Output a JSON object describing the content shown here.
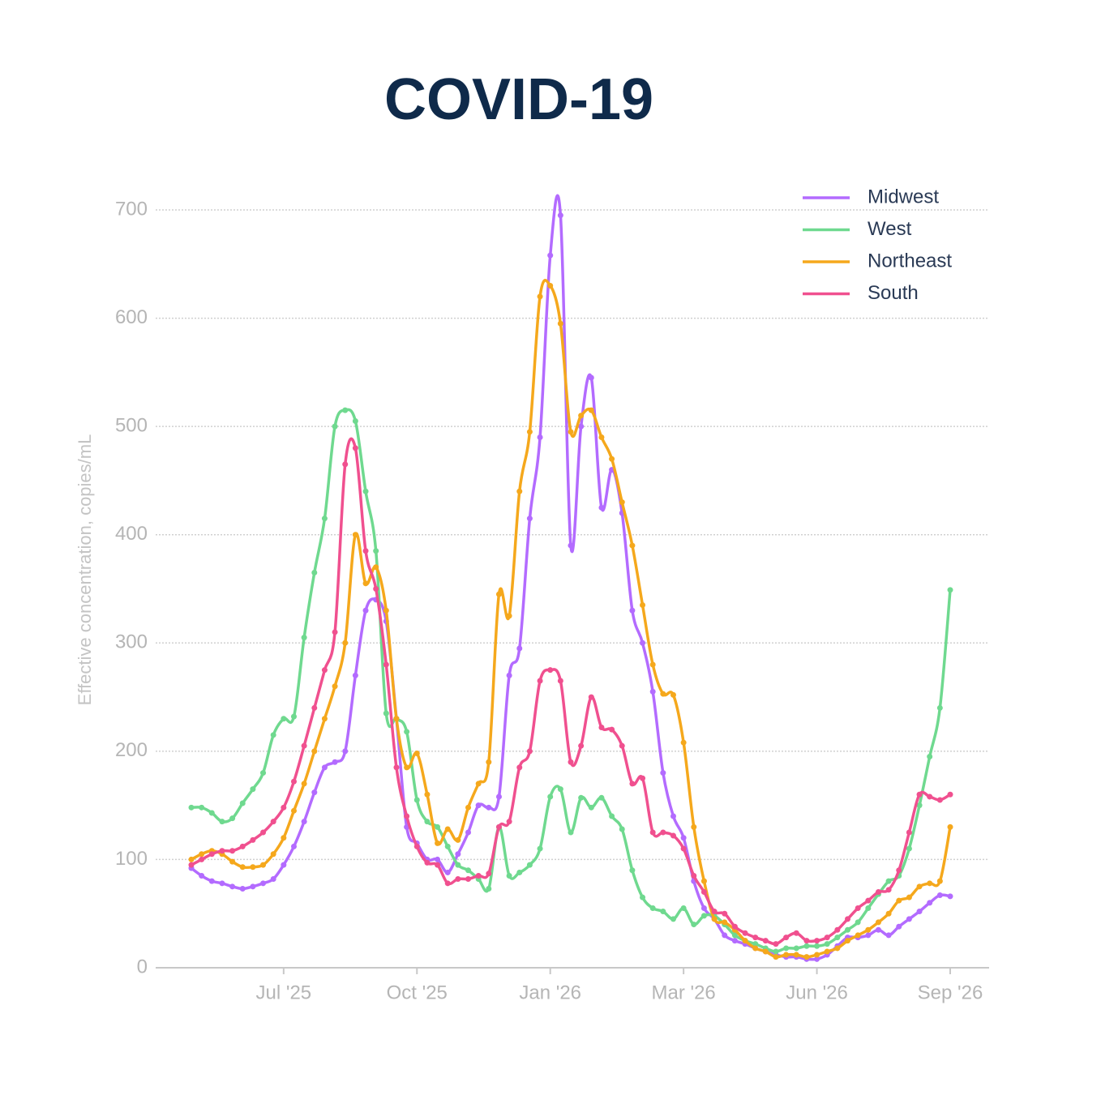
{
  "chart_data": {
    "type": "line",
    "title": "COVID-19",
    "y_label": "Effective concentration, copies/mL",
    "categories": [
      null,
      null,
      null,
      null,
      null,
      null,
      null,
      null,
      null,
      "Jul '25",
      null,
      null,
      null,
      null,
      null,
      null,
      null,
      null,
      null,
      null,
      null,
      null,
      "Oct '25",
      null,
      null,
      null,
      null,
      null,
      null,
      null,
      null,
      null,
      null,
      null,
      null,
      "Jan '26",
      null,
      null,
      null,
      null,
      null,
      null,
      null,
      null,
      null,
      null,
      null,
      null,
      "Mar '26",
      null,
      null,
      null,
      null,
      null,
      null,
      null,
      null,
      null,
      null,
      null,
      null,
      "Jun '26",
      null,
      null,
      null,
      null,
      null,
      null,
      null,
      null,
      null,
      null,
      null,
      null,
      "Sep '26"
    ],
    "series": [
      {
        "name": "Midwest",
        "color": "#b36bff",
        "values": [
          92,
          85,
          80,
          78,
          75,
          73,
          75,
          78,
          82,
          95,
          112,
          135,
          162,
          185,
          190,
          200,
          270,
          330,
          340,
          320,
          230,
          130,
          115,
          100,
          100,
          88,
          105,
          125,
          150,
          148,
          158,
          270,
          295,
          415,
          490,
          658,
          695,
          390,
          500,
          545,
          425,
          460,
          420,
          330,
          300,
          255,
          180,
          140,
          120,
          80,
          55,
          45,
          30,
          25,
          22,
          18,
          15,
          12,
          10,
          10,
          8,
          8,
          12,
          20,
          28,
          28,
          30,
          35,
          30,
          38,
          45,
          52,
          60,
          67,
          66
        ]
      },
      {
        "name": "West",
        "color": "#6fd98f",
        "values": [
          148,
          148,
          143,
          135,
          138,
          152,
          165,
          180,
          215,
          230,
          232,
          305,
          365,
          415,
          500,
          515,
          505,
          440,
          385,
          235,
          230,
          218,
          155,
          135,
          130,
          112,
          95,
          90,
          82,
          73,
          130,
          85,
          88,
          95,
          110,
          158,
          165,
          125,
          157,
          148,
          157,
          140,
          128,
          90,
          65,
          55,
          52,
          45,
          55,
          40,
          48,
          48,
          40,
          30,
          25,
          22,
          18,
          15,
          18,
          18,
          20,
          20,
          22,
          28,
          35,
          42,
          55,
          68,
          80,
          85,
          110,
          150,
          195,
          240,
          349
        ]
      },
      {
        "name": "Northeast",
        "color": "#f5a81c",
        "values": [
          100,
          105,
          108,
          105,
          98,
          93,
          93,
          95,
          105,
          120,
          145,
          170,
          200,
          230,
          260,
          300,
          400,
          355,
          370,
          330,
          230,
          185,
          198,
          160,
          115,
          128,
          118,
          148,
          170,
          190,
          345,
          325,
          440,
          495,
          620,
          630,
          595,
          495,
          510,
          515,
          490,
          470,
          430,
          390,
          335,
          280,
          253,
          252,
          208,
          130,
          80,
          45,
          42,
          35,
          25,
          18,
          15,
          10,
          12,
          12,
          10,
          12,
          15,
          18,
          25,
          30,
          35,
          42,
          50,
          62,
          65,
          75,
          78,
          80,
          130
        ]
      },
      {
        "name": "South",
        "color": "#f0508f",
        "values": [
          95,
          100,
          105,
          108,
          108,
          112,
          118,
          125,
          135,
          148,
          172,
          205,
          240,
          275,
          310,
          465,
          480,
          385,
          350,
          280,
          185,
          140,
          112,
          97,
          95,
          78,
          82,
          82,
          85,
          87,
          130,
          135,
          185,
          200,
          265,
          275,
          265,
          190,
          205,
          250,
          222,
          220,
          205,
          170,
          175,
          125,
          125,
          122,
          110,
          85,
          70,
          52,
          50,
          38,
          32,
          28,
          25,
          22,
          28,
          32,
          25,
          25,
          28,
          35,
          45,
          55,
          62,
          70,
          72,
          90,
          125,
          160,
          158,
          155,
          160
        ]
      }
    ],
    "ylim": [
      0,
      700
    ],
    "yticks": [
      0,
      100,
      200,
      300,
      400,
      500,
      600,
      700
    ],
    "grid": true,
    "legend": "top-right"
  }
}
